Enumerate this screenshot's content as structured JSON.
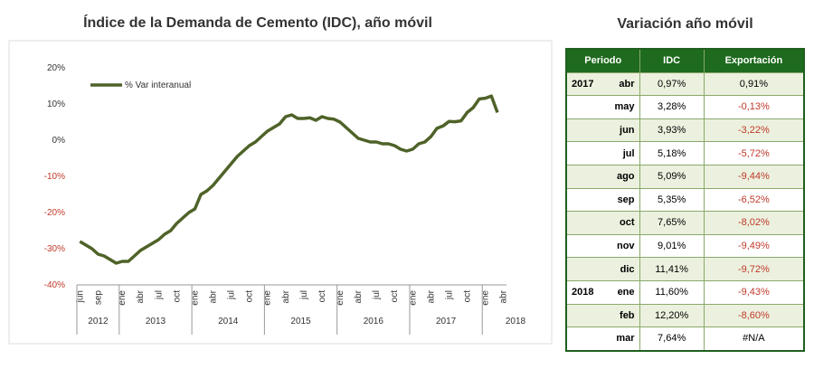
{
  "chart_data": {
    "type": "line",
    "title": "Índice de la Demanda de Cemento (IDC), año móvil",
    "categories": [
      "jun",
      null,
      null,
      "sep",
      null,
      null,
      null,
      "ene",
      null,
      null,
      "abr",
      null,
      null,
      "jul",
      null,
      null,
      "oct",
      null,
      null,
      "ene",
      null,
      null,
      "abr",
      null,
      null,
      "jul",
      null,
      null,
      "oct",
      null,
      null,
      "ene",
      null,
      null,
      "abr",
      null,
      null,
      "jul",
      null,
      null,
      "oct",
      null,
      null,
      "ene",
      null,
      null,
      "abr",
      null,
      null,
      "jul",
      null,
      null,
      "oct",
      null,
      null,
      "ene",
      null,
      null,
      "abr",
      null,
      null,
      "jul",
      null,
      null,
      "oct",
      null,
      null,
      "ene",
      null,
      null,
      "abr"
    ],
    "years": [
      "2012",
      "2013",
      "2014",
      "2015",
      "2016",
      "2017",
      "2018"
    ],
    "series": [
      {
        "name": "% Var interanual",
        "color": "#4f6228",
        "values": [
          -28,
          -29,
          -30,
          -31.5,
          -32,
          -33,
          -34,
          -33.5,
          -33.5,
          -32,
          -30.5,
          -29.5,
          -28.5,
          -27.5,
          -26,
          -25,
          -23,
          -21.5,
          -20,
          -19,
          -15,
          -14,
          -12.5,
          -10.5,
          -8.5,
          -6.5,
          -4.5,
          -3,
          -1.5,
          -0.5,
          1,
          2.5,
          3.5,
          4.5,
          6.5,
          7,
          6,
          6,
          6.2,
          5.5,
          6.5,
          6,
          5.8,
          5,
          3.5,
          2,
          0.5,
          0,
          -0.5,
          -0.5,
          -1,
          -1,
          -1.5,
          -2.5,
          -3,
          -2.5,
          -1,
          -0.5,
          0.97,
          3.28,
          3.93,
          5.18,
          5.09,
          5.35,
          7.65,
          9.01,
          11.41,
          11.6,
          12.2,
          7.64,
          null
        ]
      }
    ],
    "ylim": [
      -40,
      20
    ],
    "yticks": [
      {
        "value": -40,
        "label": "-40%"
      },
      {
        "value": -30,
        "label": "-30%"
      },
      {
        "value": -20,
        "label": "-20%"
      },
      {
        "value": -10,
        "label": "-10%"
      },
      {
        "value": 0,
        "label": "0%"
      },
      {
        "value": 10,
        "label": "10%"
      },
      {
        "value": 20,
        "label": "20%"
      }
    ],
    "legend": "upper left"
  },
  "table": {
    "title": "Variación año móvil",
    "header": [
      "Periodo",
      "IDC",
      "Exportación"
    ],
    "rows": [
      [
        "2017",
        "abr",
        "0,97%",
        "0,91%"
      ],
      [
        "",
        "may",
        "3,28%",
        "-0,13%"
      ],
      [
        "",
        "jun",
        "3,93%",
        "-3,22%"
      ],
      [
        "",
        "jul",
        "5,18%",
        "-5,72%"
      ],
      [
        "",
        "ago",
        "5,09%",
        "-9,44%"
      ],
      [
        "",
        "sep",
        "5,35%",
        "-6,52%"
      ],
      [
        "",
        "oct",
        "7,65%",
        "-8,02%"
      ],
      [
        "",
        "nov",
        "9,01%",
        "-9,49%"
      ],
      [
        "",
        "dic",
        "11,41%",
        "-9,72%"
      ],
      [
        "2018",
        "ene",
        "11,60%",
        "-9,43%"
      ],
      [
        "",
        "feb",
        "12,20%",
        "-8,60%"
      ],
      [
        "",
        "mar",
        "7,64%",
        "#N/A"
      ]
    ]
  }
}
